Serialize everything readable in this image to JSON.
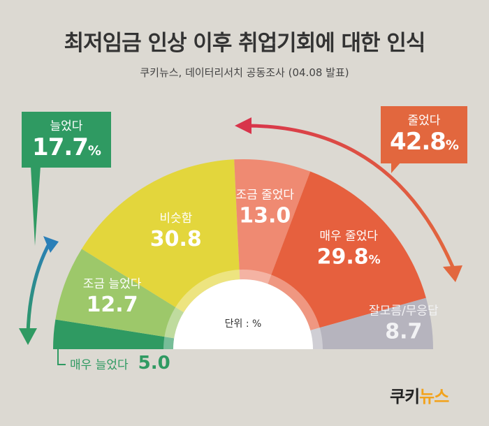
{
  "title": "최저임금 인상 이후 취업기회에 대한 인식",
  "subtitle": "쿠키뉴스, 데이터리서치 공동조사 (04.08 발표)",
  "unit_label": "단위 : %",
  "callouts": {
    "increased": {
      "label": "늘었다",
      "value": "17.7",
      "pct": "%"
    },
    "decreased": {
      "label": "줄었다",
      "value": "42.8",
      "pct": "%"
    }
  },
  "logo": {
    "part1": "쿠키",
    "part2": "뉴스"
  },
  "colors": {
    "much_increased": "#2f9a62",
    "slightly_increased": "#9dc86a",
    "same": "#e3d63c",
    "slightly_decreased": "#ef8a72",
    "much_decreased": "#e6603e",
    "unknown": "#b6b4be",
    "arrow_left": "#2f9a62",
    "arrow_right": "#e2673e"
  },
  "chart_data": {
    "type": "pie",
    "variant": "semicircle-donut",
    "title": "최저임금 인상 이후 취업기회에 대한 인식",
    "unit": "%",
    "slices": [
      {
        "label": "매우 늘었다",
        "value": 5.0,
        "display": "5.0"
      },
      {
        "label": "조금 늘었다",
        "value": 12.7,
        "display": "12.7"
      },
      {
        "label": "비슷함",
        "value": 30.8,
        "display": "30.8"
      },
      {
        "label": "조금 줄었다",
        "value": 13.0,
        "display": "13.0"
      },
      {
        "label": "매우 줄었다",
        "value": 29.8,
        "display": "29.8",
        "suffix": "%"
      },
      {
        "label": "잘모름/무응답",
        "value": 8.7,
        "display": "8.7"
      }
    ]
  }
}
